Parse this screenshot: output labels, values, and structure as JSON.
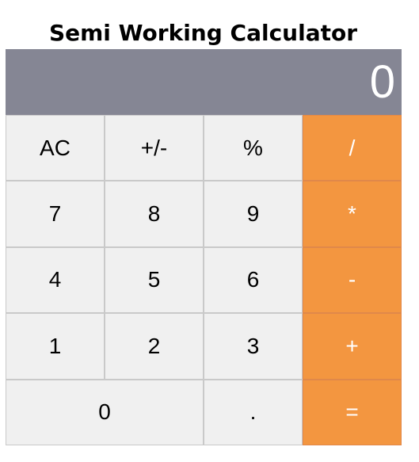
{
  "page": {
    "title": "Semi Working Calculator"
  },
  "display": {
    "value": "0"
  },
  "keys": {
    "ac": "AC",
    "plus_minus": "+/-",
    "percent": "%",
    "divide": "/",
    "seven": "7",
    "eight": "8",
    "nine": "9",
    "multiply": "*",
    "four": "4",
    "five": "5",
    "six": "6",
    "subtract": "-",
    "one": "1",
    "two": "2",
    "three": "3",
    "add": "+",
    "zero": "0",
    "decimal": ".",
    "equals": "="
  },
  "colors": {
    "display_bg": "#858694",
    "key_bg": "#f0f0f0",
    "operator_bg": "#f39640",
    "operator_text": "#ffffff"
  }
}
